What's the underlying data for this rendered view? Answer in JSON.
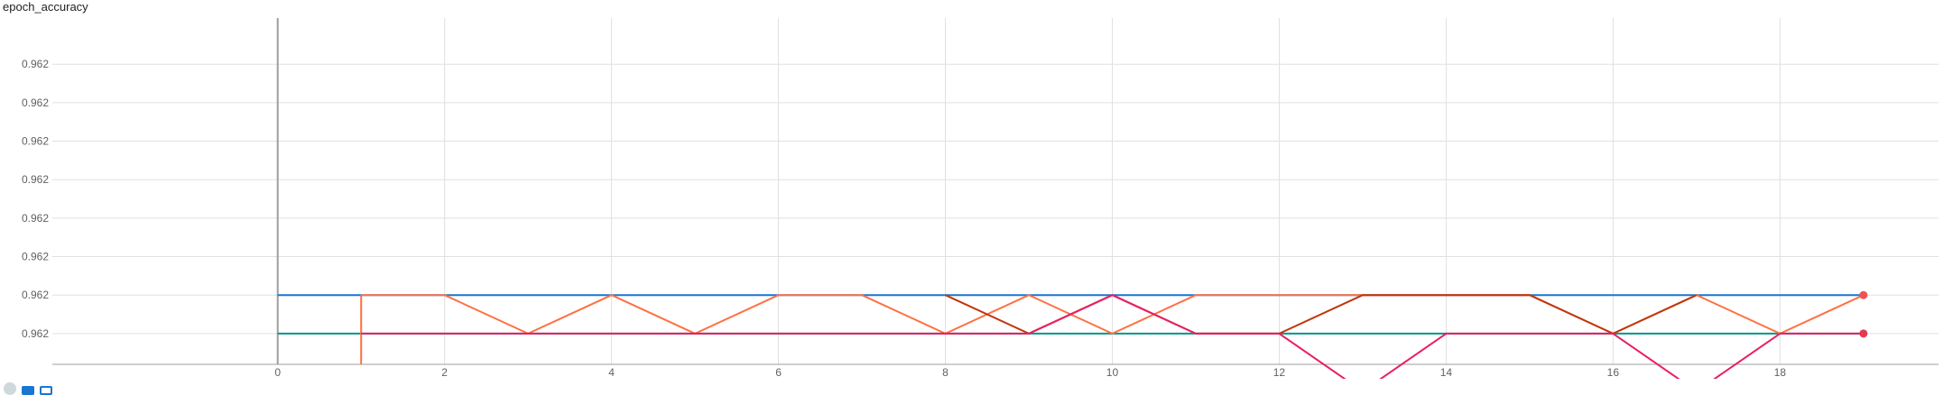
{
  "chart_data": {
    "type": "line",
    "title": "epoch_accuracy",
    "x": [
      0,
      1,
      2,
      3,
      4,
      5,
      6,
      7,
      8,
      9,
      10,
      11,
      12,
      13,
      14,
      15,
      16,
      17,
      18,
      19
    ],
    "xticks": [
      0,
      2,
      4,
      6,
      8,
      10,
      12,
      14,
      16,
      18
    ],
    "xlim": [
      -2.7,
      19.9
    ],
    "ytick_labels": [
      "0.962",
      "0.962",
      "0.962",
      "0.962",
      "0.962",
      "0.962",
      "0.962",
      "0.962"
    ],
    "ylim": [
      -0.8,
      8.2
    ],
    "grid": true,
    "series": [
      {
        "color": "#1976d2",
        "values": [
          1,
          1,
          1,
          1,
          1,
          1,
          1,
          1,
          1,
          1,
          1,
          1,
          1,
          1,
          1,
          1,
          1,
          1,
          1,
          1
        ]
      },
      {
        "color": "#009688",
        "values": [
          0,
          0,
          0,
          0,
          0,
          0,
          0,
          0,
          0,
          0,
          0,
          0,
          0,
          0,
          0,
          0,
          0,
          0,
          0,
          0
        ]
      },
      {
        "color": "#ff7043",
        "values": [
          null,
          1,
          1,
          0,
          1,
          0,
          1,
          1,
          0,
          1,
          0,
          1,
          1,
          1,
          1,
          1,
          0,
          1,
          0,
          1
        ],
        "drop_at": 1
      },
      {
        "color": "#bf360c",
        "values": [
          null,
          null,
          null,
          null,
          null,
          null,
          null,
          null,
          1,
          0,
          1,
          0,
          0,
          1,
          1,
          1,
          0,
          1,
          null,
          null
        ]
      },
      {
        "color": "#e91e63",
        "values": [
          null,
          0,
          0,
          0,
          0,
          0,
          0,
          0,
          0,
          0,
          1,
          0,
          0,
          -1.5,
          0,
          0,
          0,
          -1.5,
          0,
          0
        ],
        "end_marker": true
      }
    ],
    "markers": [
      {
        "x": 19,
        "y": 1,
        "color": "#ef5350"
      },
      {
        "x": 19,
        "y": 0,
        "color": "#e53950"
      }
    ]
  },
  "toolbar": {
    "icons": [
      "expand-icon",
      "data-icon",
      "fit-icon"
    ]
  }
}
